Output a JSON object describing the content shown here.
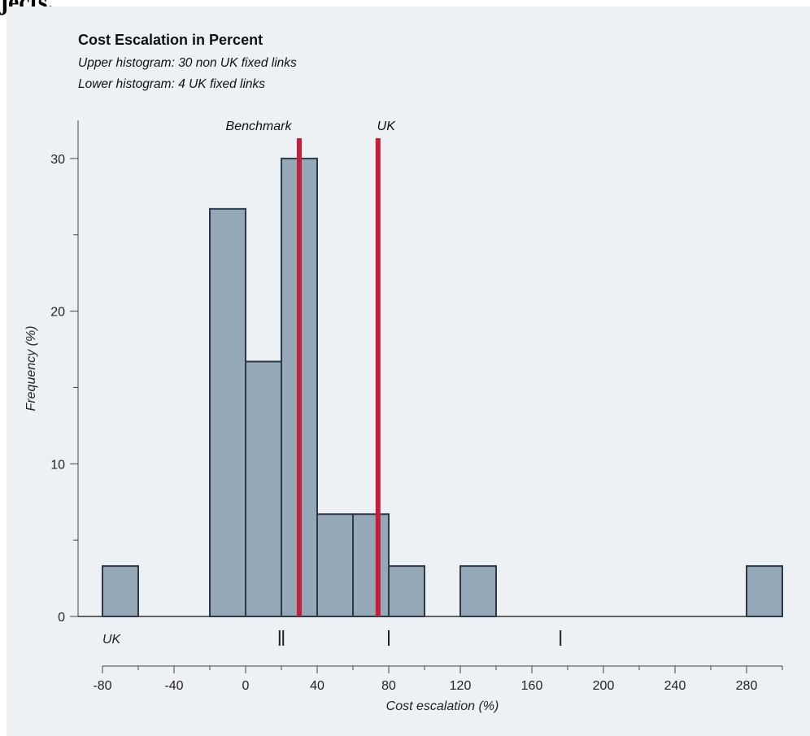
{
  "page": {
    "top_fragment": "jects."
  },
  "chart_data": {
    "type": "bar",
    "title": "Cost Escalation in Percent",
    "subtitles": [
      "Upper histogram: 30 non UK fixed links",
      "Lower histogram: 4 UK fixed links"
    ],
    "xlabel": "Cost escalation (%)",
    "ylabel": "Frequency (%)",
    "xlim": [
      -80,
      300
    ],
    "ylim": [
      0,
      33
    ],
    "xticks": [
      -80,
      -40,
      0,
      40,
      80,
      120,
      160,
      200,
      240,
      280
    ],
    "yticks": [
      0,
      10,
      20,
      30
    ],
    "bin_width": 20,
    "bins": [
      {
        "start": -80,
        "end": -60,
        "value": 3.3
      },
      {
        "start": -20,
        "end": 0,
        "value": 26.7
      },
      {
        "start": 0,
        "end": 20,
        "value": 16.7
      },
      {
        "start": 20,
        "end": 40,
        "value": 30
      },
      {
        "start": 40,
        "end": 60,
        "value": 6.7
      },
      {
        "start": 60,
        "end": 80,
        "value": 6.7
      },
      {
        "start": 80,
        "end": 100,
        "value": 3.3
      },
      {
        "start": 120,
        "end": 140,
        "value": 3.3
      },
      {
        "start": 280,
        "end": 300,
        "value": 3.3
      }
    ],
    "reference_lines": [
      {
        "label": "Benchmark",
        "x": 30,
        "color": "#c41e3a"
      },
      {
        "label": "UK",
        "x": 74,
        "color": "#c41e3a"
      }
    ],
    "lower_histogram": {
      "label": "UK",
      "values": [
        19,
        21,
        80,
        176
      ]
    },
    "bar_color": "#94a8b8",
    "bar_edge_color": "#2b3a45"
  }
}
